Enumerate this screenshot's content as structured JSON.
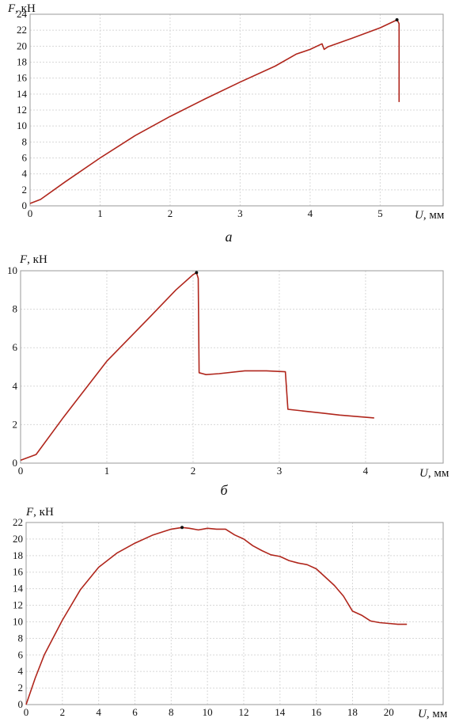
{
  "chart_data": [
    {
      "type": "line",
      "caption": "а",
      "ylabel_var": "F",
      "ylabel_unit": ", кН",
      "xlabel_var": "U",
      "xlabel_unit": ", мм",
      "xlim": [
        0,
        5.9
      ],
      "ylim": [
        0,
        24
      ],
      "xticks": [
        0,
        1,
        2,
        3,
        4,
        5
      ],
      "yticks": [
        0,
        2,
        4,
        6,
        8,
        10,
        12,
        14,
        16,
        18,
        20,
        22,
        24
      ],
      "grid": true,
      "peak": [
        5.24,
        23.3
      ],
      "series": [
        {
          "color": "#b0261c",
          "points": [
            [
              0,
              0.3
            ],
            [
              0.15,
              0.8
            ],
            [
              0.5,
              3.0
            ],
            [
              1.0,
              6.0
            ],
            [
              1.5,
              8.8
            ],
            [
              2.0,
              11.2
            ],
            [
              2.5,
              13.4
            ],
            [
              3.0,
              15.5
            ],
            [
              3.5,
              17.5
            ],
            [
              3.8,
              19.0
            ],
            [
              4.0,
              19.6
            ],
            [
              4.17,
              20.3
            ],
            [
              4.2,
              19.6
            ],
            [
              4.25,
              19.9
            ],
            [
              4.6,
              21.0
            ],
            [
              5.0,
              22.3
            ],
            [
              5.24,
              23.3
            ],
            [
              5.26,
              23.0
            ],
            [
              5.27,
              22.8
            ],
            [
              5.27,
              13.0
            ]
          ]
        }
      ]
    },
    {
      "type": "line",
      "caption": "б",
      "ylabel_var": "F",
      "ylabel_unit": ", кН",
      "xlabel_var": "U",
      "xlabel_unit": ", мм",
      "xlim": [
        0,
        4.9
      ],
      "ylim": [
        0,
        10
      ],
      "xticks": [
        0,
        1,
        2,
        3,
        4
      ],
      "yticks": [
        0,
        2,
        4,
        6,
        8,
        10
      ],
      "grid": true,
      "peak": [
        2.04,
        9.9
      ],
      "series": [
        {
          "color": "#b0261c",
          "points": [
            [
              0,
              0.15
            ],
            [
              0.18,
              0.45
            ],
            [
              0.5,
              2.4
            ],
            [
              1.0,
              5.3
            ],
            [
              1.5,
              7.6
            ],
            [
              1.8,
              9.0
            ],
            [
              2.0,
              9.8
            ],
            [
              2.04,
              9.9
            ],
            [
              2.06,
              9.6
            ],
            [
              2.07,
              4.7
            ],
            [
              2.15,
              4.6
            ],
            [
              2.3,
              4.65
            ],
            [
              2.6,
              4.8
            ],
            [
              2.85,
              4.8
            ],
            [
              3.07,
              4.75
            ],
            [
              3.1,
              2.8
            ],
            [
              3.3,
              2.7
            ],
            [
              3.5,
              2.6
            ],
            [
              3.7,
              2.5
            ],
            [
              4.1,
              2.35
            ]
          ]
        }
      ]
    },
    {
      "type": "line",
      "caption": "",
      "ylabel_var": "F",
      "ylabel_unit": ", кН",
      "xlabel_var": "U",
      "xlabel_unit": ", мм",
      "xlim": [
        0,
        23
      ],
      "ylim": [
        0,
        22
      ],
      "xticks": [
        0,
        2,
        4,
        6,
        8,
        10,
        12,
        14,
        16,
        18,
        20
      ],
      "yticks": [
        0,
        2,
        4,
        6,
        8,
        10,
        12,
        14,
        16,
        18,
        20,
        22
      ],
      "grid": true,
      "peak": [
        8.6,
        21.4
      ],
      "series": [
        {
          "color": "#b0261c",
          "points": [
            [
              0,
              0
            ],
            [
              0.5,
              3.2
            ],
            [
              1,
              6.0
            ],
            [
              2,
              10.2
            ],
            [
              3,
              13.9
            ],
            [
              4,
              16.6
            ],
            [
              5,
              18.3
            ],
            [
              6,
              19.5
            ],
            [
              7,
              20.5
            ],
            [
              8,
              21.2
            ],
            [
              8.6,
              21.4
            ],
            [
              9,
              21.3
            ],
            [
              9.5,
              21.1
            ],
            [
              10,
              21.3
            ],
            [
              10.5,
              21.2
            ],
            [
              11,
              21.2
            ],
            [
              11.5,
              20.5
            ],
            [
              12,
              20.0
            ],
            [
              12.5,
              19.2
            ],
            [
              13,
              18.6
            ],
            [
              13.5,
              18.1
            ],
            [
              14,
              17.9
            ],
            [
              14.5,
              17.4
            ],
            [
              15,
              17.1
            ],
            [
              15.5,
              16.9
            ],
            [
              16,
              16.4
            ],
            [
              16.5,
              15.4
            ],
            [
              17,
              14.4
            ],
            [
              17.5,
              13.1
            ],
            [
              18,
              11.3
            ],
            [
              18.5,
              10.8
            ],
            [
              19,
              10.1
            ],
            [
              19.5,
              9.9
            ],
            [
              20,
              9.8
            ],
            [
              20.5,
              9.7
            ],
            [
              21,
              9.7
            ]
          ]
        }
      ]
    }
  ]
}
